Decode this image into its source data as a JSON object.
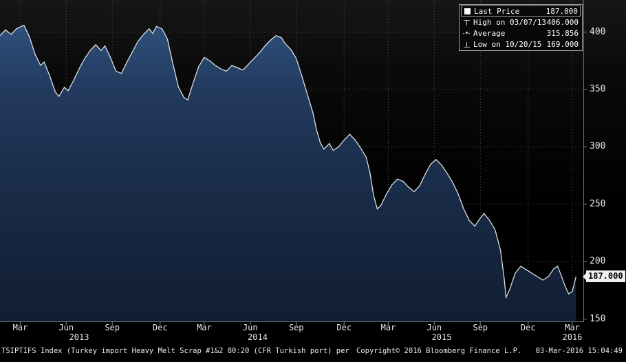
{
  "footer": {
    "description": "TSIPTIFS Index (Turkey import Heavy Melt Scrap #1&2 80:20 (CFR Turkish port) per",
    "copyright": "Copyright© 2016 Bloomberg Finance L.P.",
    "datetime": "03-Mar-2016 15:04:49"
  },
  "chart_data": {
    "type": "area",
    "title": "TSIPTIFS Index (Turkey import Heavy Melt Scrap #1&2 80:20 (CFR Turkish port) per",
    "xlim": [
      2013.05,
      2016.22
    ],
    "ylim": [
      148,
      428
    ],
    "yticks": [
      150,
      200,
      250,
      300,
      350,
      400
    ],
    "xticks": [
      {
        "label": "Mar",
        "pos": 2013.16
      },
      {
        "label": "Jun",
        "pos": 2013.41
      },
      {
        "label": "Sep",
        "pos": 2013.66
      },
      {
        "label": "Dec",
        "pos": 2013.92
      },
      {
        "label": "Mar",
        "pos": 2014.16
      },
      {
        "label": "Jun",
        "pos": 2014.41
      },
      {
        "label": "Sep",
        "pos": 2014.66
      },
      {
        "label": "Dec",
        "pos": 2014.92
      },
      {
        "label": "Mar",
        "pos": 2015.16
      },
      {
        "label": "Jun",
        "pos": 2015.41
      },
      {
        "label": "Sep",
        "pos": 2015.66
      },
      {
        "label": "Dec",
        "pos": 2015.92
      },
      {
        "label": "Mar",
        "pos": 2016.16
      }
    ],
    "year_labels": [
      {
        "label": "2013",
        "pos": 2013.48
      },
      {
        "label": "2014",
        "pos": 2014.45
      },
      {
        "label": "2015",
        "pos": 2015.45
      },
      {
        "label": "2016",
        "pos": 2016.16
      }
    ],
    "legend": {
      "rows": [
        {
          "marker": "square",
          "label": "Last Price",
          "value": "187.000"
        },
        {
          "marker": "high-tick",
          "label": "High on 03/07/13",
          "value": "406.000"
        },
        {
          "marker": "avg-dash",
          "label": "Average",
          "value": "315.856"
        },
        {
          "marker": "low-tick",
          "label": "Low on 10/20/15",
          "value": "169.000"
        }
      ]
    },
    "last_price_label": "187.000",
    "last_price_value": 187,
    "average_value": 315.856,
    "high": {
      "date": "03/07/13",
      "value": 406
    },
    "low": {
      "date": "10/20/15",
      "value": 169
    },
    "colors": {
      "line": "#dce0e4",
      "grid": "#575757",
      "axis": "#6e6e6e",
      "text": "#e8e8e8",
      "tag_bg": "#f0f0f0",
      "tag_text": "#000000",
      "area_gradient": [
        {
          "offset": 0,
          "color": "#30507c"
        },
        {
          "offset": 0.22,
          "color": "#223a5e"
        },
        {
          "offset": 0.6,
          "color": "#182a45"
        },
        {
          "offset": 1,
          "color": "#111e33"
        }
      ]
    },
    "series": [
      {
        "name": "Last Price",
        "points": [
          [
            2013.05,
            397
          ],
          [
            2013.08,
            402
          ],
          [
            2013.11,
            398
          ],
          [
            2013.14,
            403
          ],
          [
            2013.18,
            406
          ],
          [
            2013.21,
            396
          ],
          [
            2013.24,
            381
          ],
          [
            2013.27,
            371
          ],
          [
            2013.29,
            374
          ],
          [
            2013.32,
            362
          ],
          [
            2013.35,
            348
          ],
          [
            2013.37,
            344
          ],
          [
            2013.4,
            352
          ],
          [
            2013.42,
            349
          ],
          [
            2013.45,
            358
          ],
          [
            2013.48,
            368
          ],
          [
            2013.51,
            377
          ],
          [
            2013.54,
            384
          ],
          [
            2013.57,
            389
          ],
          [
            2013.6,
            384
          ],
          [
            2013.62,
            388
          ],
          [
            2013.65,
            378
          ],
          [
            2013.68,
            366
          ],
          [
            2013.71,
            364
          ],
          [
            2013.74,
            374
          ],
          [
            2013.77,
            383
          ],
          [
            2013.8,
            392
          ],
          [
            2013.83,
            398
          ],
          [
            2013.86,
            403
          ],
          [
            2013.88,
            399
          ],
          [
            2013.9,
            405
          ],
          [
            2013.93,
            403
          ],
          [
            2013.96,
            394
          ],
          [
            2013.99,
            372
          ],
          [
            2014.02,
            352
          ],
          [
            2014.05,
            343
          ],
          [
            2014.07,
            341
          ],
          [
            2014.1,
            356
          ],
          [
            2014.13,
            370
          ],
          [
            2014.16,
            378
          ],
          [
            2014.19,
            375
          ],
          [
            2014.22,
            371
          ],
          [
            2014.25,
            368
          ],
          [
            2014.28,
            366
          ],
          [
            2014.31,
            371
          ],
          [
            2014.34,
            369
          ],
          [
            2014.37,
            367
          ],
          [
            2014.4,
            372
          ],
          [
            2014.43,
            377
          ],
          [
            2014.46,
            382
          ],
          [
            2014.49,
            388
          ],
          [
            2014.52,
            393
          ],
          [
            2014.55,
            397
          ],
          [
            2014.58,
            395
          ],
          [
            2014.6,
            390
          ],
          [
            2014.63,
            385
          ],
          [
            2014.66,
            377
          ],
          [
            2014.69,
            362
          ],
          [
            2014.72,
            346
          ],
          [
            2014.75,
            330
          ],
          [
            2014.77,
            315
          ],
          [
            2014.79,
            304
          ],
          [
            2014.81,
            298
          ],
          [
            2014.84,
            303
          ],
          [
            2014.86,
            297
          ],
          [
            2014.89,
            300
          ],
          [
            2014.92,
            306
          ],
          [
            2014.95,
            311
          ],
          [
            2014.98,
            306
          ],
          [
            2015.01,
            299
          ],
          [
            2015.04,
            291
          ],
          [
            2015.06,
            278
          ],
          [
            2015.08,
            258
          ],
          [
            2015.1,
            246
          ],
          [
            2015.12,
            249
          ],
          [
            2015.15,
            259
          ],
          [
            2015.18,
            267
          ],
          [
            2015.21,
            272
          ],
          [
            2015.24,
            270
          ],
          [
            2015.27,
            265
          ],
          [
            2015.3,
            261
          ],
          [
            2015.33,
            266
          ],
          [
            2015.36,
            276
          ],
          [
            2015.39,
            285
          ],
          [
            2015.42,
            289
          ],
          [
            2015.45,
            284
          ],
          [
            2015.48,
            277
          ],
          [
            2015.51,
            269
          ],
          [
            2015.54,
            259
          ],
          [
            2015.57,
            246
          ],
          [
            2015.6,
            236
          ],
          [
            2015.63,
            231
          ],
          [
            2015.66,
            238
          ],
          [
            2015.68,
            242
          ],
          [
            2015.71,
            236
          ],
          [
            2015.74,
            228
          ],
          [
            2015.77,
            210
          ],
          [
            2015.79,
            185
          ],
          [
            2015.8,
            169
          ],
          [
            2015.82,
            176
          ],
          [
            2015.85,
            190
          ],
          [
            2015.88,
            196
          ],
          [
            2015.91,
            193
          ],
          [
            2015.94,
            190
          ],
          [
            2015.97,
            187
          ],
          [
            2016.0,
            184
          ],
          [
            2016.03,
            187
          ],
          [
            2016.06,
            194
          ],
          [
            2016.08,
            196
          ],
          [
            2016.1,
            188
          ],
          [
            2016.12,
            179
          ],
          [
            2016.14,
            172
          ],
          [
            2016.16,
            174
          ],
          [
            2016.18,
            187
          ]
        ]
      }
    ]
  }
}
